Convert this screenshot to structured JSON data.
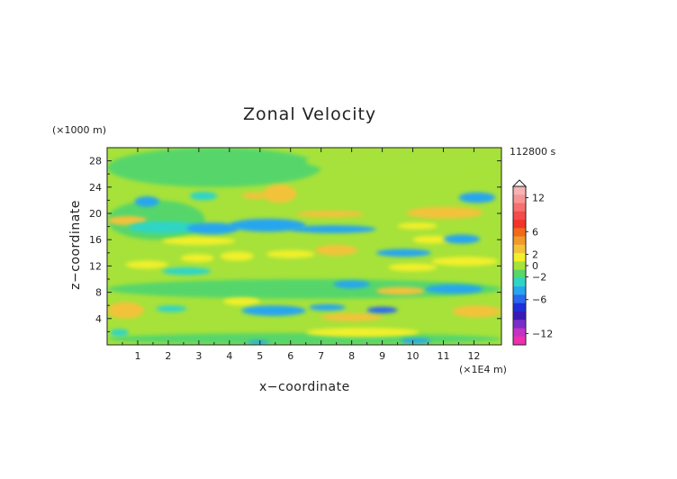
{
  "chart_data": {
    "type": "heatmap",
    "title": "Zonal Velocity",
    "xlabel": "x−coordinate",
    "ylabel": "z−coordinate",
    "x_unit": "(×1E4 m)",
    "z_unit": "(×1000 m)",
    "time_label": "112800 s",
    "xlim": [
      0,
      12.9
    ],
    "ylim": [
      0,
      30
    ],
    "x_ticks": [
      1,
      2,
      3,
      4,
      5,
      6,
      7,
      8,
      9,
      10,
      11,
      12
    ],
    "y_ticks": [
      4,
      8,
      12,
      16,
      20,
      24,
      28
    ],
    "colorbar": {
      "tick_labels": [
        "12",
        "6",
        "2",
        "0",
        "−2",
        "−6",
        "−12"
      ],
      "tick_values": [
        12,
        6,
        2,
        0,
        -2,
        -6,
        -12
      ],
      "levels": [
        14,
        12,
        10,
        8,
        6,
        4,
        3,
        2,
        1,
        0,
        -1,
        -2,
        -3,
        -4,
        -6,
        -8,
        -10,
        -12,
        -14
      ],
      "colors": [
        "#f7b3b3",
        "#f79595",
        "#f76f6f",
        "#f44b4b",
        "#f2342a",
        "#f06a1a",
        "#f09a2a",
        "#f3c23a",
        "#f2f02a",
        "#a6e23a",
        "#57d66a",
        "#2ed5c6",
        "#25a6ee",
        "#2a68ef",
        "#1f2fd9",
        "#3a1ab5",
        "#7a2ec9",
        "#c433c4",
        "#f02fb0"
      ]
    },
    "background_level": 0.5,
    "features": [
      {
        "x": [
          0,
          12.9
        ],
        "z": [
          0,
          30
        ],
        "value": 0.5
      },
      {
        "x": [
          0,
          7
        ],
        "z": [
          24,
          30
        ],
        "value": -0.5
      },
      {
        "x": [
          0,
          3.2
        ],
        "z": [
          16,
          22
        ],
        "value": -0.5
      },
      {
        "x": [
          6.5,
          12.9
        ],
        "z": [
          26,
          30
        ],
        "value": 0.5
      },
      {
        "x": [
          0,
          12.9
        ],
        "z": [
          7,
          10
        ],
        "value": -0.5
      },
      {
        "x": [
          0,
          1.2
        ],
        "z": [
          4,
          6.5
        ],
        "value": 2.5
      },
      {
        "x": [
          0,
          1.3
        ],
        "z": [
          18.2,
          19.6
        ],
        "value": 2.5
      },
      {
        "x": [
          0.9,
          1.7
        ],
        "z": [
          21,
          22.6
        ],
        "value": -2.5
      },
      {
        "x": [
          2.7,
          3.6
        ],
        "z": [
          22,
          23.3
        ],
        "value": -1.5
      },
      {
        "x": [
          4.4,
          5.3
        ],
        "z": [
          22.2,
          23.2
        ],
        "value": 2.5
      },
      {
        "x": [
          5.1,
          6.2
        ],
        "z": [
          21.6,
          24.4
        ],
        "value": 2.5
      },
      {
        "x": [
          0.7,
          3
        ],
        "z": [
          17,
          18.8
        ],
        "value": -1.5
      },
      {
        "x": [
          1.8,
          4.2
        ],
        "z": [
          15.2,
          16.4
        ],
        "value": 2
      },
      {
        "x": [
          2.6,
          4.3
        ],
        "z": [
          16.8,
          18.6
        ],
        "value": -2.5
      },
      {
        "x": [
          4,
          6.5
        ],
        "z": [
          17.2,
          19.2
        ],
        "value": -2
      },
      {
        "x": [
          6,
          8.8
        ],
        "z": [
          17,
          18.2
        ],
        "value": -2.5
      },
      {
        "x": [
          6.2,
          8.4
        ],
        "z": [
          19.4,
          20.4
        ],
        "value": 2.5
      },
      {
        "x": [
          9.8,
          12.3
        ],
        "z": [
          19.2,
          21
        ],
        "value": 2.5
      },
      {
        "x": [
          9.5,
          10.8
        ],
        "z": [
          17.6,
          18.6
        ],
        "value": 2
      },
      {
        "x": [
          11.5,
          12.7
        ],
        "z": [
          21.6,
          23.2
        ],
        "value": -2.5
      },
      {
        "x": [
          10,
          11.2
        ],
        "z": [
          15.4,
          16.6
        ],
        "value": 2
      },
      {
        "x": [
          11,
          12.2
        ],
        "z": [
          15.4,
          16.8
        ],
        "value": -2.5
      },
      {
        "x": [
          0.6,
          2
        ],
        "z": [
          11.6,
          12.8
        ],
        "value": 2
      },
      {
        "x": [
          2.4,
          3.5
        ],
        "z": [
          12.6,
          13.8
        ],
        "value": 2
      },
      {
        "x": [
          3.7,
          4.8
        ],
        "z": [
          12.8,
          14.2
        ],
        "value": 2
      },
      {
        "x": [
          5.2,
          6.8
        ],
        "z": [
          13.2,
          14.4
        ],
        "value": 2
      },
      {
        "x": [
          6.8,
          8.2
        ],
        "z": [
          13.6,
          15.2
        ],
        "value": 2.5
      },
      {
        "x": [
          8.8,
          10.6
        ],
        "z": [
          13.4,
          14.6
        ],
        "value": -2
      },
      {
        "x": [
          9.2,
          10.8
        ],
        "z": [
          11.2,
          12.4
        ],
        "value": 2
      },
      {
        "x": [
          10.6,
          12.8
        ],
        "z": [
          12,
          13.4
        ],
        "value": 2
      },
      {
        "x": [
          1.8,
          3.4
        ],
        "z": [
          10.6,
          11.8
        ],
        "value": -1.5
      },
      {
        "x": [
          8.8,
          10.4
        ],
        "z": [
          7.6,
          8.8
        ],
        "value": 2.5
      },
      {
        "x": [
          10.4,
          12.3
        ],
        "z": [
          7.8,
          9.2
        ],
        "value": -2
      },
      {
        "x": [
          7.4,
          8.6
        ],
        "z": [
          8.6,
          9.8
        ],
        "value": -2
      },
      {
        "x": [
          3.8,
          5
        ],
        "z": [
          6,
          7.2
        ],
        "value": 2
      },
      {
        "x": [
          4.4,
          6.5
        ],
        "z": [
          4.4,
          6
        ],
        "value": -2
      },
      {
        "x": [
          6.6,
          7.8
        ],
        "z": [
          5.2,
          6.2
        ],
        "value": -2
      },
      {
        "x": [
          7,
          9
        ],
        "z": [
          3.6,
          4.8
        ],
        "value": 2.5
      },
      {
        "x": [
          8.5,
          9.5
        ],
        "z": [
          4.8,
          5.8
        ],
        "value": -3
      },
      {
        "x": [
          11.3,
          12.9
        ],
        "z": [
          4.2,
          6
        ],
        "value": 2.5
      },
      {
        "x": [
          1.6,
          2.6
        ],
        "z": [
          5,
          6
        ],
        "value": -1.5
      },
      {
        "x": [
          0,
          12.9
        ],
        "z": [
          0,
          1.8
        ],
        "value": -0.5
      },
      {
        "x": [
          0.1,
          0.7
        ],
        "z": [
          1.3,
          2.4
        ],
        "value": -1.5
      },
      {
        "x": [
          6.5,
          10.2
        ],
        "z": [
          1.2,
          2.6
        ],
        "value": 2
      },
      {
        "x": [
          4.6,
          5.3
        ],
        "z": [
          0.1,
          0.7
        ],
        "value": -2
      },
      {
        "x": [
          9.6,
          10.6
        ],
        "z": [
          0.2,
          1
        ],
        "value": -2.5
      }
    ]
  }
}
